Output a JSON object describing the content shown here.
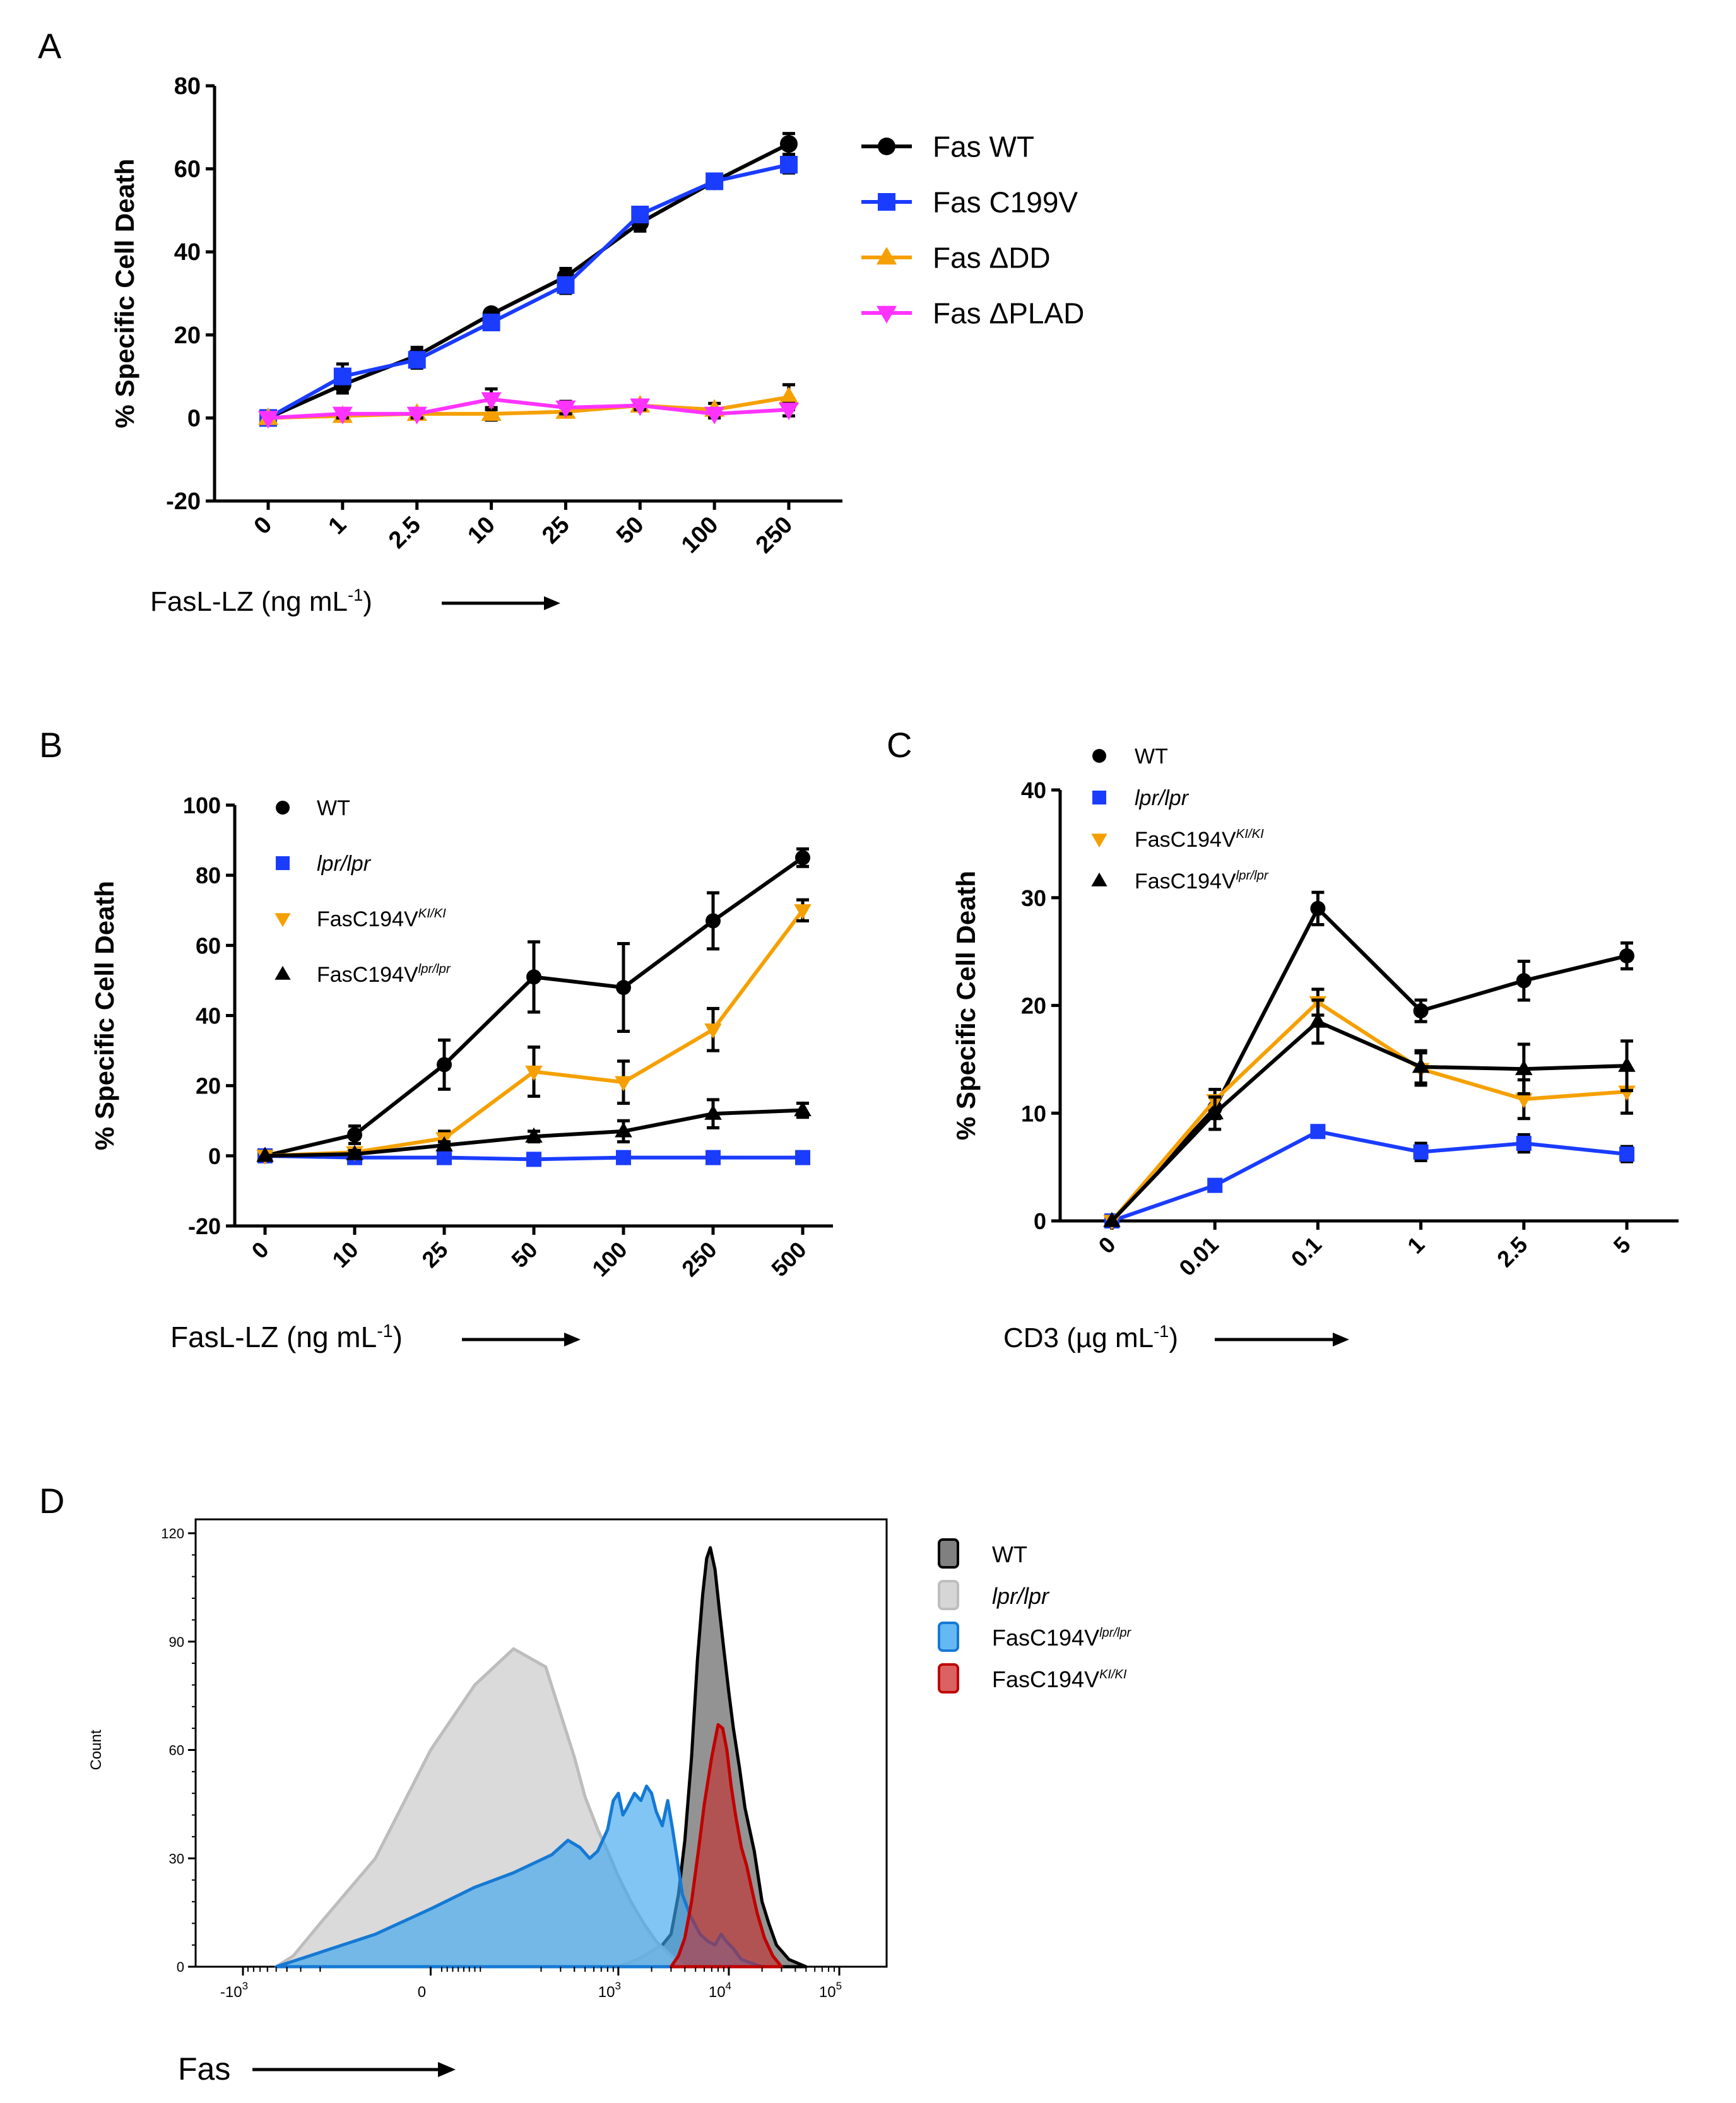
{
  "panels": {
    "A": {
      "letter": "A"
    },
    "B": {
      "letter": "B"
    },
    "C": {
      "letter": "C"
    },
    "D": {
      "letter": "D"
    }
  },
  "chart_data": [
    {
      "id": "A",
      "type": "line",
      "ylabel": "% Specific Cell Death",
      "xlabel_main": "FasL-LZ (ng mL",
      "xlabel_sup": "-1",
      "xlabel_end": ")",
      "categories": [
        "0",
        "1",
        "2.5",
        "10",
        "25",
        "50",
        "100",
        "250"
      ],
      "ylim": [
        -20,
        80
      ],
      "yticks": [
        -20,
        0,
        20,
        40,
        60,
        80
      ],
      "series": [
        {
          "name": "Fas WT",
          "color": "#000000",
          "marker": "circle",
          "values": [
            0,
            8,
            15,
            25,
            34,
            47,
            57,
            66
          ],
          "errors": [
            0,
            2,
            2,
            1,
            2,
            2,
            1,
            2.5
          ]
        },
        {
          "name": "Fas C199V",
          "color": "#1a3cff",
          "marker": "square",
          "values": [
            0,
            10,
            14,
            23,
            32,
            49,
            57,
            61
          ],
          "errors": [
            0,
            3,
            2,
            1.5,
            2,
            1.5,
            1,
            2
          ]
        },
        {
          "name": "Fas ΔDD",
          "color": "#f5a000",
          "marker": "triangle-up",
          "values": [
            0,
            0.5,
            1,
            1,
            1.5,
            3,
            2,
            5
          ],
          "errors": [
            0,
            1,
            1,
            1.5,
            1,
            1,
            1.5,
            3
          ]
        },
        {
          "name": "Fas ΔPLAD",
          "color": "#ff33ff",
          "marker": "triangle-down",
          "values": [
            0,
            1,
            1,
            4.5,
            2.5,
            3,
            1,
            2
          ],
          "errors": [
            0,
            1,
            1,
            2.5,
            1.5,
            1,
            1,
            1.5
          ]
        }
      ]
    },
    {
      "id": "B",
      "type": "line",
      "ylabel": "% Specific Cell Death",
      "xlabel_main": "FasL-LZ (ng mL",
      "xlabel_sup": "-1",
      "xlabel_end": ")",
      "categories": [
        "0",
        "10",
        "25",
        "50",
        "100",
        "250",
        "500"
      ],
      "ylim": [
        -20,
        100
      ],
      "yticks": [
        -20,
        0,
        20,
        40,
        60,
        80,
        100
      ],
      "series": [
        {
          "name": "WT",
          "legend_sup": "",
          "italic": false,
          "color": "#000000",
          "marker": "circle",
          "values": [
            0,
            6,
            26,
            51,
            48,
            67,
            85
          ],
          "errors": [
            0,
            2.5,
            7,
            10,
            12.5,
            8,
            2.5
          ]
        },
        {
          "name": "lpr/lpr",
          "legend_sup": "",
          "italic": true,
          "color": "#1a3cff",
          "marker": "square",
          "values": [
            0,
            -0.5,
            -0.5,
            -1,
            -0.5,
            -0.5,
            -0.5
          ],
          "errors": [
            0,
            1,
            1,
            1,
            1,
            1,
            1
          ]
        },
        {
          "name": "FasC194V",
          "legend_sup": "KI/KI",
          "italic": false,
          "color": "#f5a000",
          "marker": "triangle-down",
          "values": [
            0,
            1,
            5,
            24,
            21,
            36,
            70
          ],
          "errors": [
            0,
            1,
            2,
            7,
            6,
            6,
            3
          ]
        },
        {
          "name": "FasC194V",
          "legend_sup": "lpr/lpr",
          "italic": false,
          "color": "#000000",
          "marker": "triangle-up",
          "values": [
            0,
            0.5,
            3,
            5.5,
            7,
            12,
            13
          ],
          "errors": [
            0,
            1,
            1,
            1.5,
            3,
            4,
            2
          ]
        }
      ]
    },
    {
      "id": "C",
      "type": "line",
      "ylabel": "% Specific Cell Death",
      "xlabel_main": "CD3 (µg mL",
      "xlabel_sup": "-1",
      "xlabel_end": ")",
      "categories": [
        "0",
        "0.01",
        "0.1",
        "1",
        "2.5",
        "5"
      ],
      "ylim": [
        0,
        40
      ],
      "yticks": [
        0,
        10,
        20,
        30,
        40
      ],
      "series": [
        {
          "name": "WT",
          "legend_sup": "",
          "italic": false,
          "color": "#000000",
          "marker": "circle",
          "values": [
            0,
            10.5,
            29,
            19.5,
            22.3,
            24.6
          ],
          "errors": [
            0,
            1,
            1.5,
            1,
            1.8,
            1.2
          ]
        },
        {
          "name": "lpr/lpr",
          "legend_sup": "",
          "italic": true,
          "color": "#1a3cff",
          "marker": "square",
          "values": [
            0,
            3.3,
            8.3,
            6.4,
            7.2,
            6.2
          ],
          "errors": [
            0,
            0.4,
            0.5,
            0.8,
            0.8,
            0.7
          ]
        },
        {
          "name": "FasC194V",
          "legend_sup": "KI/KI",
          "italic": false,
          "color": "#f5a000",
          "marker": "triangle-down",
          "values": [
            0,
            11.2,
            20.3,
            14.1,
            11.3,
            12
          ],
          "errors": [
            0,
            1,
            1.2,
            1.5,
            1.8,
            2
          ]
        },
        {
          "name": "FasC194V",
          "legend_sup": "lpr/lpr",
          "italic": false,
          "color": "#000000",
          "marker": "triangle-up",
          "values": [
            0,
            10,
            18.5,
            14.3,
            14.1,
            14.4
          ],
          "errors": [
            0,
            1.5,
            2,
            1.5,
            2.3,
            2.3
          ]
        }
      ]
    },
    {
      "id": "D",
      "type": "area",
      "ylabel": "Count",
      "xlabel": "Fas",
      "ylim": [
        0,
        120
      ],
      "yticks": [
        0,
        30,
        60,
        90,
        120
      ],
      "xtick_labels": [
        "-10",
        "0",
        "10",
        "10",
        "10"
      ],
      "xtick_sups": [
        "3",
        "",
        "3",
        "4",
        "5"
      ],
      "xtick_values": [
        -1000,
        0,
        1000,
        10000,
        100000
      ],
      "series": [
        {
          "name": "WT",
          "italic": false,
          "legend_sup": "",
          "fill": "#808080",
          "fill_opacity": 0.85,
          "stroke": "#000000",
          "points": [
            [
              1000,
              0
            ],
            [
              1500,
              2
            ],
            [
              2500,
              6
            ],
            [
              3000,
              9
            ],
            [
              3500,
              20
            ],
            [
              4000,
              35
            ],
            [
              4600,
              58
            ],
            [
              5200,
              85
            ],
            [
              5800,
              103
            ],
            [
              6300,
              113
            ],
            [
              6800,
              116
            ],
            [
              7500,
              110
            ],
            [
              8200,
              99
            ],
            [
              9000,
              88
            ],
            [
              10000,
              76
            ],
            [
              11000,
              66
            ],
            [
              12500,
              55
            ],
            [
              14000,
              44
            ],
            [
              17000,
              32
            ],
            [
              20000,
              18
            ],
            [
              23000,
              12
            ],
            [
              27000,
              6
            ],
            [
              35000,
              2
            ],
            [
              50000,
              0
            ]
          ]
        },
        {
          "name": "lpr/lpr",
          "italic": true,
          "legend_sup": "",
          "fill": "#d6d6d6",
          "fill_opacity": 0.9,
          "stroke": "#bdbdbd",
          "points": [
            [
              -500,
              0
            ],
            [
              -350,
              3
            ],
            [
              -200,
              12
            ],
            [
              -100,
              30
            ],
            [
              0,
              60
            ],
            [
              80,
              78
            ],
            [
              150,
              88
            ],
            [
              220,
              83
            ],
            [
              300,
              70
            ],
            [
              400,
              58
            ],
            [
              500,
              47
            ],
            [
              650,
              38
            ],
            [
              800,
              32
            ],
            [
              1000,
              25
            ],
            [
              1300,
              18
            ],
            [
              1700,
              12
            ],
            [
              2200,
              7
            ],
            [
              3000,
              3
            ],
            [
              4000,
              0
            ]
          ]
        },
        {
          "name": "FasC194V",
          "italic": false,
          "legend_sup": "lpr/lpr",
          "fill": "#3ea6ee",
          "fill_opacity": 0.65,
          "stroke": "#1479d4",
          "points": [
            [
              -500,
              0
            ],
            [
              -250,
              3
            ],
            [
              -100,
              9
            ],
            [
              0,
              16
            ],
            [
              80,
              22
            ],
            [
              150,
              26
            ],
            [
              250,
              31
            ],
            [
              350,
              35
            ],
            [
              450,
              33
            ],
            [
              550,
              30
            ],
            [
              650,
              32
            ],
            [
              800,
              38
            ],
            [
              900,
              46
            ],
            [
              1000,
              48
            ],
            [
              1100,
              42
            ],
            [
              1200,
              44
            ],
            [
              1400,
              48
            ],
            [
              1600,
              46
            ],
            [
              1800,
              50
            ],
            [
              2000,
              48
            ],
            [
              2200,
              43
            ],
            [
              2500,
              39
            ],
            [
              2800,
              46
            ],
            [
              3100,
              38
            ],
            [
              3400,
              30
            ],
            [
              3800,
              20
            ],
            [
              4500,
              14
            ],
            [
              5500,
              9
            ],
            [
              6500,
              7
            ],
            [
              7500,
              6
            ],
            [
              8500,
              9
            ],
            [
              9500,
              7
            ],
            [
              11000,
              5
            ],
            [
              13000,
              2
            ],
            [
              16000,
              1
            ],
            [
              20000,
              0
            ]
          ]
        },
        {
          "name": "FasC194V",
          "italic": false,
          "legend_sup": "KI/KI",
          "fill": "#cc1f1f",
          "fill_opacity": 0.55,
          "stroke": "#c00000",
          "points": [
            [
              3000,
              0
            ],
            [
              3500,
              3
            ],
            [
              4000,
              8
            ],
            [
              4600,
              18
            ],
            [
              5300,
              32
            ],
            [
              6000,
              45
            ],
            [
              7000,
              58
            ],
            [
              8000,
              67
            ],
            [
              8800,
              66
            ],
            [
              9600,
              60
            ],
            [
              10500,
              50
            ],
            [
              11500,
              42
            ],
            [
              13000,
              33
            ],
            [
              14500,
              28
            ],
            [
              16000,
              22
            ],
            [
              18000,
              15
            ],
            [
              21000,
              8
            ],
            [
              25000,
              3
            ],
            [
              30000,
              0
            ]
          ]
        }
      ]
    }
  ]
}
